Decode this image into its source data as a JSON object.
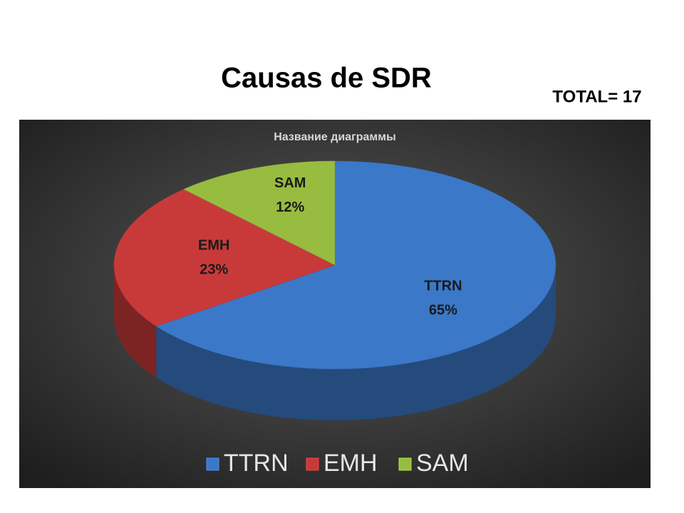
{
  "slide": {
    "title": "Causas de SDR",
    "note": "TOTAL= 17"
  },
  "chart_data": {
    "type": "pie3d",
    "title": "Название диаграммы",
    "categories": [
      "TTRN",
      "EMH",
      "SAM"
    ],
    "values": [
      65,
      23,
      12
    ],
    "value_labels": [
      "65%",
      "23%",
      "12%"
    ],
    "colors": [
      "#3b78c8",
      "#c83a3a",
      "#97bc40"
    ],
    "legend": "bottom"
  }
}
